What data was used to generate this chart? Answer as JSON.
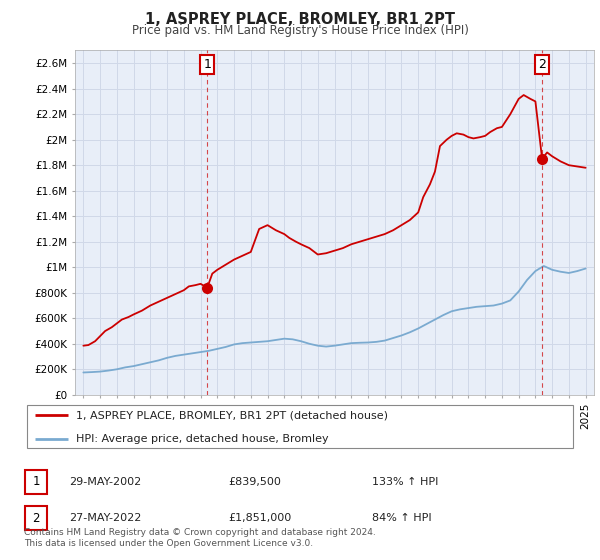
{
  "title": "1, ASPREY PLACE, BROMLEY, BR1 2PT",
  "subtitle": "Price paid vs. HM Land Registry's House Price Index (HPI)",
  "footnote": "Contains HM Land Registry data © Crown copyright and database right 2024.\nThis data is licensed under the Open Government Licence v3.0.",
  "legend_line1": "1, ASPREY PLACE, BROMLEY, BR1 2PT (detached house)",
  "legend_line2": "HPI: Average price, detached house, Bromley",
  "sale1_date": "29-MAY-2002",
  "sale1_price": "£839,500",
  "sale1_hpi": "133% ↑ HPI",
  "sale2_date": "27-MAY-2022",
  "sale2_price": "£1,851,000",
  "sale2_hpi": "84% ↑ HPI",
  "red_color": "#cc0000",
  "blue_color": "#7aaad0",
  "grid_color": "#d0d8e8",
  "bg_color": "#e8eef8",
  "ylim": [
    0,
    2700000
  ],
  "xlim": [
    1994.5,
    2025.5
  ],
  "yticks": [
    0,
    200000,
    400000,
    600000,
    800000,
    1000000,
    1200000,
    1400000,
    1600000,
    1800000,
    2000000,
    2200000,
    2400000,
    2600000
  ],
  "ytick_labels": [
    "£0",
    "£200K",
    "£400K",
    "£600K",
    "£800K",
    "£1M",
    "£1.2M",
    "£1.4M",
    "£1.6M",
    "£1.8M",
    "£2M",
    "£2.2M",
    "£2.4M",
    "£2.6M"
  ],
  "hpi_x": [
    1995.0,
    1995.5,
    1996.0,
    1996.5,
    1997.0,
    1997.5,
    1998.0,
    1998.5,
    1999.0,
    1999.5,
    2000.0,
    2000.5,
    2001.0,
    2001.5,
    2002.0,
    2002.5,
    2003.0,
    2003.5,
    2004.0,
    2004.5,
    2005.0,
    2005.5,
    2006.0,
    2006.5,
    2007.0,
    2007.5,
    2008.0,
    2008.5,
    2009.0,
    2009.5,
    2010.0,
    2010.5,
    2011.0,
    2011.5,
    2012.0,
    2012.5,
    2013.0,
    2013.5,
    2014.0,
    2014.5,
    2015.0,
    2015.5,
    2016.0,
    2016.5,
    2017.0,
    2017.5,
    2018.0,
    2018.5,
    2019.0,
    2019.5,
    2020.0,
    2020.5,
    2021.0,
    2021.5,
    2022.0,
    2022.5,
    2023.0,
    2023.5,
    2024.0,
    2024.5,
    2025.0
  ],
  "hpi_y": [
    175000,
    178000,
    182000,
    190000,
    200000,
    215000,
    225000,
    240000,
    255000,
    270000,
    290000,
    305000,
    315000,
    325000,
    335000,
    345000,
    360000,
    375000,
    395000,
    405000,
    410000,
    415000,
    420000,
    430000,
    440000,
    435000,
    420000,
    400000,
    385000,
    378000,
    385000,
    395000,
    405000,
    408000,
    410000,
    415000,
    425000,
    445000,
    465000,
    490000,
    520000,
    555000,
    590000,
    625000,
    655000,
    670000,
    680000,
    690000,
    695000,
    700000,
    715000,
    740000,
    810000,
    900000,
    970000,
    1010000,
    980000,
    965000,
    955000,
    970000,
    990000
  ],
  "red_x": [
    1995.0,
    1995.3,
    1995.7,
    1996.0,
    1996.3,
    1996.7,
    1997.0,
    1997.3,
    1997.7,
    1998.0,
    1998.5,
    1999.0,
    1999.5,
    2000.0,
    2000.5,
    2001.0,
    2001.3,
    2001.7,
    2002.0,
    2002.4,
    2002.7,
    2003.0,
    2003.5,
    2004.0,
    2004.5,
    2005.0,
    2005.5,
    2006.0,
    2006.5,
    2007.0,
    2007.3,
    2007.7,
    2008.0,
    2008.5,
    2009.0,
    2009.5,
    2010.0,
    2010.5,
    2011.0,
    2011.5,
    2012.0,
    2012.5,
    2013.0,
    2013.5,
    2014.0,
    2014.5,
    2015.0,
    2015.3,
    2015.7,
    2016.0,
    2016.3,
    2016.7,
    2017.0,
    2017.3,
    2017.7,
    2018.0,
    2018.3,
    2018.7,
    2019.0,
    2019.3,
    2019.7,
    2020.0,
    2020.5,
    2021.0,
    2021.3,
    2021.7,
    2022.0,
    2022.4,
    2022.7,
    2023.0,
    2023.5,
    2024.0,
    2024.5,
    2025.0
  ],
  "red_y": [
    385000,
    390000,
    420000,
    460000,
    500000,
    530000,
    560000,
    590000,
    610000,
    630000,
    660000,
    700000,
    730000,
    760000,
    790000,
    820000,
    850000,
    860000,
    870000,
    839500,
    950000,
    980000,
    1020000,
    1060000,
    1090000,
    1120000,
    1300000,
    1330000,
    1290000,
    1260000,
    1230000,
    1200000,
    1180000,
    1150000,
    1100000,
    1110000,
    1130000,
    1150000,
    1180000,
    1200000,
    1220000,
    1240000,
    1260000,
    1290000,
    1330000,
    1370000,
    1430000,
    1550000,
    1650000,
    1750000,
    1950000,
    2000000,
    2030000,
    2050000,
    2040000,
    2020000,
    2010000,
    2020000,
    2030000,
    2060000,
    2090000,
    2100000,
    2200000,
    2320000,
    2350000,
    2320000,
    2300000,
    1851000,
    1900000,
    1870000,
    1830000,
    1800000,
    1790000,
    1780000
  ],
  "sale1_x": 2002.4,
  "sale1_y": 839500,
  "sale2_x": 2022.4,
  "sale2_y": 1851000
}
